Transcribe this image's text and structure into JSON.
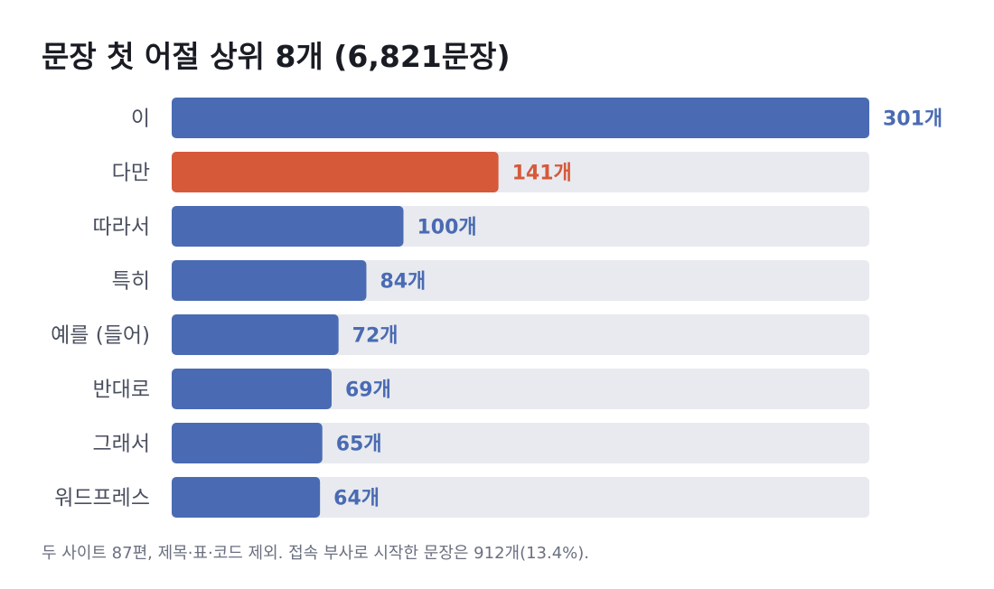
{
  "chart_data": {
    "type": "bar",
    "orientation": "horizontal",
    "title": "문장 첫 어절 상위 8개 (6,821문장)",
    "categories": [
      "이",
      "다만",
      "따라서",
      "특히",
      "예를 (들어)",
      "반대로",
      "그래서",
      "워드프레스"
    ],
    "values": [
      301,
      141,
      100,
      84,
      72,
      69,
      65,
      64
    ],
    "value_labels": [
      "301개",
      "141개",
      "100개",
      "84개",
      "72개",
      "69개",
      "65개",
      "64개"
    ],
    "xlim": [
      0,
      301
    ],
    "grid": false,
    "legend": "none",
    "highlight_index": 1,
    "colors": {
      "bar": "#4a6bb3",
      "highlight": "#d6593a",
      "track": "#e8eaef",
      "value_text": "#4a6bb3",
      "highlight_text": "#d6593a"
    },
    "footnote": "두 사이트 87편, 제목·표·코드 제외. 접속 부사로 시작한 문장은 912개(13.4%)."
  }
}
